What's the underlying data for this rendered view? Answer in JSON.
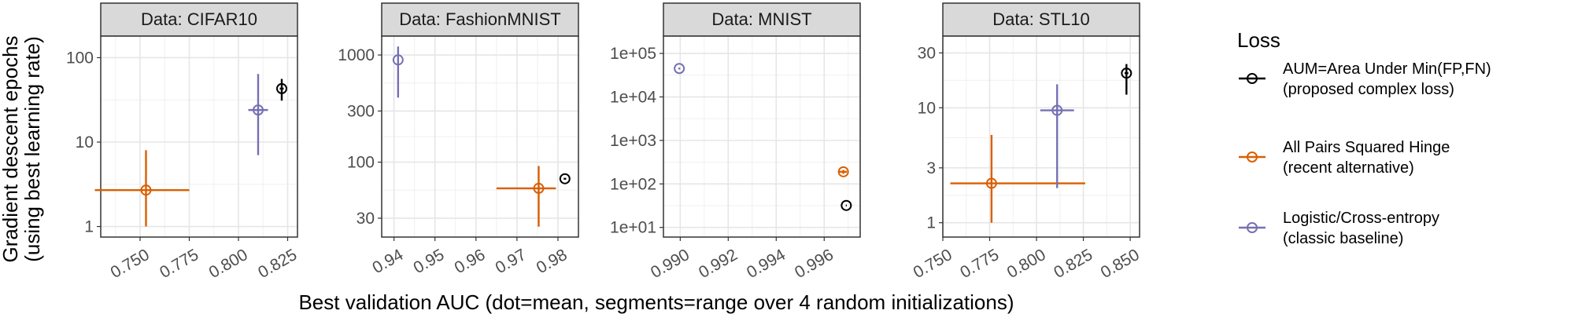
{
  "figure": {
    "xlabel": "Best validation AUC (dot=mean, segments=range over 4 random initializations)",
    "ylabel_line1": "Gradient descent epochs",
    "ylabel_line2": "(using best learning rate)",
    "legend_title": "Loss"
  },
  "legend": [
    {
      "line1": "AUM=Area Under Min(FP,FN)",
      "line2": "(proposed complex loss)",
      "color": "#000000"
    },
    {
      "line1": "All Pairs Squared Hinge",
      "line2": "(recent alternative)",
      "color": "#D95F02"
    },
    {
      "line1": "Logistic/Cross-entropy",
      "line2": "(classic baseline)",
      "color": "#7570B3"
    }
  ],
  "chart_data": [
    {
      "type": "scatter",
      "title": "Data: CIFAR10",
      "x_scale": "linear",
      "y_scale": "log",
      "xlim": [
        0.73,
        0.83
      ],
      "ylim": [
        0.75,
        180
      ],
      "xticks": [
        0.75,
        0.775,
        0.8,
        0.825
      ],
      "xtick_labels": [
        "0.750",
        "0.775",
        "0.800",
        "0.825"
      ],
      "yticks": [
        1,
        10,
        100
      ],
      "ytick_labels": [
        "1",
        "10",
        "100"
      ],
      "grid": true,
      "series": [
        {
          "name": "AUM=Area Under Min(FP,FN)",
          "x": 0.822,
          "xmin": 0.821,
          "xmax": 0.823,
          "y": 43,
          "ymin": 31,
          "ymax": 56
        },
        {
          "name": "All Pairs Squared Hinge",
          "x": 0.753,
          "xmin": 0.727,
          "xmax": 0.775,
          "y": 2.7,
          "ymin": 1.0,
          "ymax": 8.0
        },
        {
          "name": "Logistic/Cross-entropy",
          "x": 0.81,
          "xmin": 0.805,
          "xmax": 0.815,
          "y": 24,
          "ymin": 7.0,
          "ymax": 64
        }
      ]
    },
    {
      "type": "scatter",
      "title": "Data: FashionMNIST",
      "x_scale": "linear",
      "y_scale": "log",
      "xlim": [
        0.937,
        0.985
      ],
      "ylim": [
        20,
        1500
      ],
      "xticks": [
        0.94,
        0.95,
        0.96,
        0.97,
        0.98
      ],
      "xtick_labels": [
        "0.94",
        "0.95",
        "0.96",
        "0.97",
        "0.98"
      ],
      "yticks": [
        30,
        100,
        300,
        1000
      ],
      "ytick_labels": [
        "30",
        "100",
        "300",
        "1000"
      ],
      "grid": true,
      "series": [
        {
          "name": "AUM=Area Under Min(FP,FN)",
          "x": 0.9817,
          "xmin": 0.9814,
          "xmax": 0.982,
          "y": 70,
          "ymin": 70,
          "ymax": 70
        },
        {
          "name": "All Pairs Squared Hinge",
          "x": 0.9753,
          "xmin": 0.965,
          "xmax": 0.9795,
          "y": 57,
          "ymin": 25,
          "ymax": 92
        },
        {
          "name": "Logistic/Cross-entropy",
          "x": 0.941,
          "xmin": 0.9409,
          "xmax": 0.9411,
          "y": 900,
          "ymin": 400,
          "ymax": 1200
        }
      ]
    },
    {
      "type": "scatter",
      "title": "Data: MNIST",
      "x_scale": "linear",
      "y_scale": "log",
      "xlim": [
        0.9893,
        0.9975
      ],
      "ylim": [
        6,
        250000
      ],
      "xticks": [
        0.99,
        0.992,
        0.994,
        0.996
      ],
      "xtick_labels": [
        "0.990",
        "0.992",
        "0.994",
        "0.996"
      ],
      "yticks": [
        10,
        100,
        1000,
        10000,
        100000
      ],
      "ytick_labels": [
        "1e+01",
        "1e+02",
        "1e+03",
        "1e+04",
        "1e+05"
      ],
      "grid": true,
      "series": [
        {
          "name": "AUM=Area Under Min(FP,FN)",
          "x": 0.99692,
          "xmin": 0.9969,
          "xmax": 0.99694,
          "y": 32,
          "ymin": 32,
          "ymax": 32
        },
        {
          "name": "All Pairs Squared Hinge",
          "x": 0.9968,
          "xmin": 0.9966,
          "xmax": 0.99695,
          "y": 190,
          "ymin": 170,
          "ymax": 210
        },
        {
          "name": "Logistic/Cross-entropy",
          "x": 0.98996,
          "xmin": 0.98994,
          "xmax": 0.98998,
          "y": 45000,
          "ymin": 43000,
          "ymax": 47000
        }
      ]
    },
    {
      "type": "scatter",
      "title": "Data: STL10",
      "x_scale": "linear",
      "y_scale": "log",
      "xlim": [
        0.75,
        0.855
      ],
      "ylim": [
        0.75,
        42
      ],
      "xticks": [
        0.75,
        0.775,
        0.8,
        0.825,
        0.85
      ],
      "xtick_labels": [
        "0.750",
        "0.775",
        "0.800",
        "0.825",
        "0.850"
      ],
      "yticks": [
        1,
        3,
        10,
        30
      ],
      "ytick_labels": [
        "1",
        "3",
        "10",
        "30"
      ],
      "grid": true,
      "series": [
        {
          "name": "AUM=Area Under Min(FP,FN)",
          "x": 0.848,
          "xmin": 0.847,
          "xmax": 0.849,
          "y": 20,
          "ymin": 13,
          "ymax": 24
        },
        {
          "name": "All Pairs Squared Hinge",
          "x": 0.776,
          "xmin": 0.754,
          "xmax": 0.826,
          "y": 2.2,
          "ymin": 1.0,
          "ymax": 5.8
        },
        {
          "name": "Logistic/Cross-entropy",
          "x": 0.811,
          "xmin": 0.802,
          "xmax": 0.82,
          "y": 9.5,
          "ymin": 2.0,
          "ymax": 16
        }
      ]
    }
  ]
}
